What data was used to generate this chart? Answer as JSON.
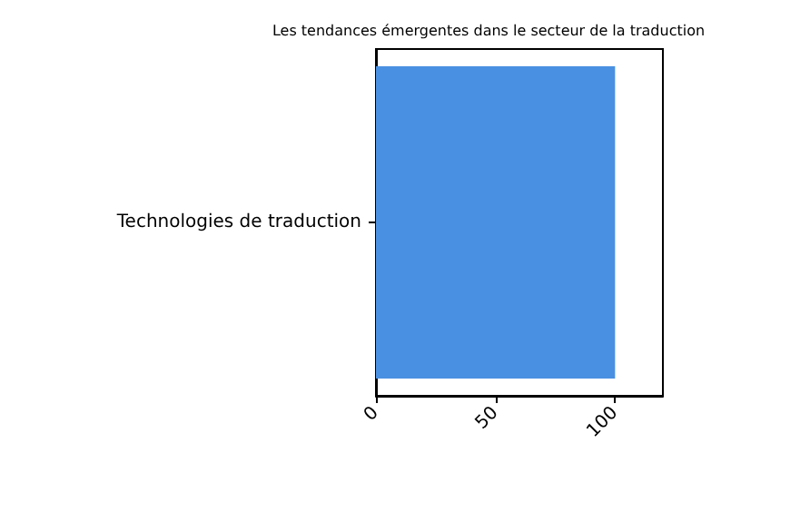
{
  "chart_data": {
    "type": "bar",
    "title": "Les tendances émergentes dans le secteur de la traduction",
    "orientation": "horizontal",
    "categories": [
      "Technologies de traduction"
    ],
    "series": [
      {
        "color": "#4a90e2",
        "values": [
          100
        ]
      }
    ],
    "xlim": [
      0,
      120
    ],
    "xticks": [
      0,
      50,
      100
    ]
  }
}
